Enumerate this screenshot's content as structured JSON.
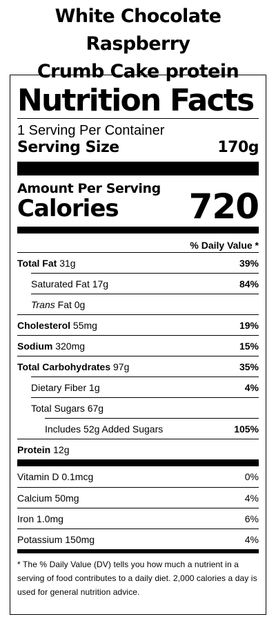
{
  "product": {
    "title_line1": "White Chocolate Raspberry",
    "title_line2": "Crumb Cake protein"
  },
  "label": {
    "heading": "Nutrition Facts",
    "servings_per_container": "1 Serving Per Container",
    "serving_size_label": "Serving Size",
    "serving_size_value": "170g",
    "amount_per_serving": "Amount Per Serving",
    "calories_label": "Calories",
    "calories_value": "720",
    "dv_header": "% Daily Value *"
  },
  "nutrients": {
    "total_fat": {
      "name": "Total Fat",
      "amount": "31g",
      "dv": "39%"
    },
    "saturated_fat": {
      "name": "Saturated Fat",
      "amount": "17g",
      "dv": "84%"
    },
    "trans_fat": {
      "name_italic": "Trans",
      "name_rest": "Fat",
      "amount": "0g"
    },
    "cholesterol": {
      "name": "Cholesterol",
      "amount": "55mg",
      "dv": "19%"
    },
    "sodium": {
      "name": "Sodium",
      "amount": "320mg",
      "dv": "15%"
    },
    "total_carbs": {
      "name": "Total Carbohydrates",
      "amount": "97g",
      "dv": "35%"
    },
    "dietary_fiber": {
      "name": "Dietary Fiber",
      "amount": "1g",
      "dv": "4%"
    },
    "total_sugars": {
      "name": "Total Sugars",
      "amount": "67g"
    },
    "added_sugars": {
      "text": "Includes 52g Added Sugars",
      "dv": "105%"
    },
    "protein": {
      "name": "Protein",
      "amount": "12g"
    }
  },
  "vitamins": [
    {
      "name": "Vitamin D 0.1mcg",
      "dv": "0%"
    },
    {
      "name": "Calcium 50mg",
      "dv": "4%"
    },
    {
      "name": "Iron 1.0mg",
      "dv": "6%"
    },
    {
      "name": "Potassium 150mg",
      "dv": "4%"
    }
  ],
  "footnote": "* The % Daily Value (DV) tells you how much a nutrient in a serving of food contributes to a daily diet. 2,000 calories a day is used for general nutrition advice."
}
